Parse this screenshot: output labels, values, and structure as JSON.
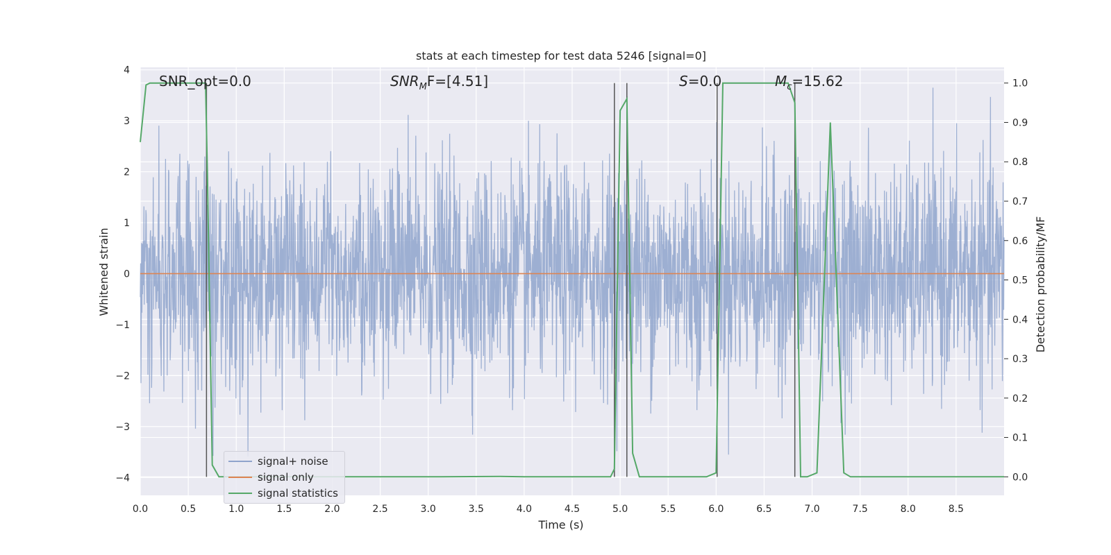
{
  "chart_data": {
    "type": "line",
    "title": "stats at each timestep for test data 5246 [signal=0]",
    "xlabel": "Time (s)",
    "ylabel": "Whitened strain",
    "y2label": "Detection probability/MF",
    "xlim": [
      0.0,
      9.0
    ],
    "ylim": [
      -4.35,
      4.05
    ],
    "y2lim": [
      -0.047,
      1.04
    ],
    "xticks": [
      "0.0",
      "0.5",
      "1.0",
      "1.5",
      "2.0",
      "2.5",
      "3.0",
      "3.5",
      "4.0",
      "4.5",
      "5.0",
      "5.5",
      "6.0",
      "6.5",
      "7.0",
      "7.5",
      "8.0",
      "8.5"
    ],
    "yticks": [
      "4",
      "3",
      "2",
      "1",
      "0",
      "−1",
      "−2",
      "−3",
      "−4"
    ],
    "y2ticks": [
      "1.0",
      "0.9",
      "0.8",
      "0.7",
      "0.6",
      "0.5",
      "0.4",
      "0.3",
      "0.2",
      "0.1",
      "0.0"
    ],
    "grid": true,
    "legend_position": "lower-left",
    "annotations": [
      {
        "prefix": "SNR_opt=0.0",
        "sub": "",
        "suffix": ""
      },
      {
        "prefix": "SNR",
        "sub": "M",
        "suffix": "F=[4.51]"
      },
      {
        "prefix": "S",
        "sub": "",
        "suffix": "=0.0"
      },
      {
        "prefix": "M",
        "sub": "c",
        "suffix": "=15.62"
      }
    ],
    "vlines": [
      0.69,
      4.94,
      5.07,
      6.01,
      6.82
    ],
    "series": [
      {
        "name": "signal+ noise",
        "color": "#8fa4cc",
        "style": "noise"
      },
      {
        "name": "signal only",
        "color": "#dd8452",
        "values": 0
      },
      {
        "name": "signal statistics",
        "color": "#55a868",
        "axis": "right",
        "x": [
          0.0,
          0.06,
          0.1,
          0.2,
          0.3,
          0.4,
          0.5,
          0.6,
          0.68,
          0.7,
          0.75,
          0.82,
          0.9,
          1.5,
          2.0,
          3.0,
          3.75,
          4.0,
          4.5,
          4.9,
          4.94,
          5.0,
          5.07,
          5.13,
          5.2,
          5.5,
          5.9,
          6.0,
          6.07,
          6.2,
          6.5,
          6.75,
          6.82,
          6.88,
          6.95,
          7.05,
          7.19,
          7.33,
          7.4,
          8.0,
          9.0
        ],
        "values": [
          0.85,
          0.995,
          1.0,
          1.0,
          1.0,
          1.0,
          1.0,
          1.0,
          1.0,
          0.76,
          0.03,
          0.0,
          0.0,
          0.0,
          0.0,
          0.0,
          0.001,
          0.0,
          0.0,
          0.0,
          0.02,
          0.93,
          0.96,
          0.06,
          0.0,
          0.0,
          0.0,
          0.01,
          1.0,
          1.0,
          1.0,
          1.0,
          0.95,
          0.0,
          0.0,
          0.01,
          0.9,
          0.01,
          0.0,
          0.0,
          0.0
        ]
      }
    ]
  }
}
